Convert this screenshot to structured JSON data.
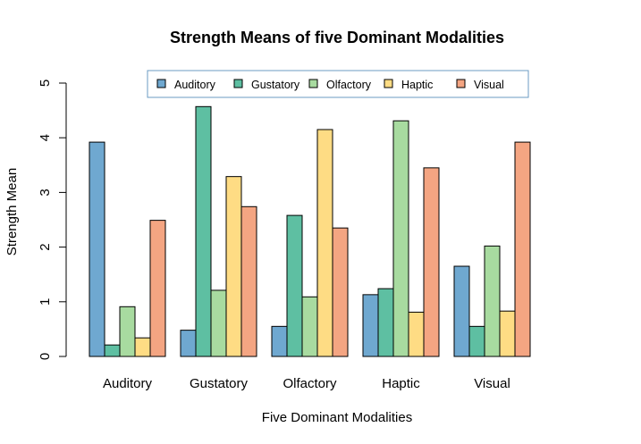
{
  "chart_data": {
    "type": "bar",
    "title": "Strength Means of five Dominant Modalities",
    "xlabel": "Five Dominant Modalities",
    "ylabel": "Strength Mean",
    "ylim": [
      0,
      5
    ],
    "yticks": [
      "0",
      "1",
      "2",
      "3",
      "4",
      "5"
    ],
    "grid": false,
    "legend_position": "top",
    "categories": [
      "Auditory",
      "Gustatory",
      "Olfactory",
      "Haptic",
      "Visual"
    ],
    "series": [
      {
        "name": "Auditory",
        "color": "#6FA8D0",
        "values": [
          3.92,
          0.48,
          0.55,
          1.13,
          1.65
        ]
      },
      {
        "name": "Gustatory",
        "color": "#5EBFA2",
        "values": [
          0.21,
          4.57,
          2.58,
          1.24,
          0.55
        ]
      },
      {
        "name": "Olfactory",
        "color": "#A8DBA0",
        "values": [
          0.91,
          1.21,
          1.09,
          4.31,
          2.02
        ]
      },
      {
        "name": "Haptic",
        "color": "#FEDC84",
        "values": [
          0.34,
          3.29,
          4.15,
          0.81,
          0.83
        ]
      },
      {
        "name": "Visual",
        "color": "#F4A582",
        "values": [
          2.49,
          2.74,
          2.35,
          3.45,
          3.92
        ]
      }
    ]
  }
}
